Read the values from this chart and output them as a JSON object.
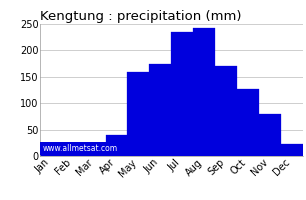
{
  "title": "Kengtung : precipitation (mm)",
  "months": [
    "Jan",
    "Feb",
    "Mar",
    "Apr",
    "May",
    "Jun",
    "Jul",
    "Aug",
    "Sep",
    "Oct",
    "Nov",
    "Dec"
  ],
  "values": [
    15,
    10,
    15,
    40,
    160,
    175,
    235,
    242,
    170,
    127,
    80,
    22
  ],
  "bar_color": "#0000dd",
  "bar_edge_color": "#0000dd",
  "ylim": [
    0,
    250
  ],
  "yticks": [
    0,
    50,
    100,
    150,
    200,
    250
  ],
  "background_color": "#ffffff",
  "plot_bg_color": "#ffffff",
  "grid_color": "#bbbbbb",
  "title_fontsize": 9.5,
  "tick_fontsize": 7,
  "watermark": "www.allmetsat.com"
}
